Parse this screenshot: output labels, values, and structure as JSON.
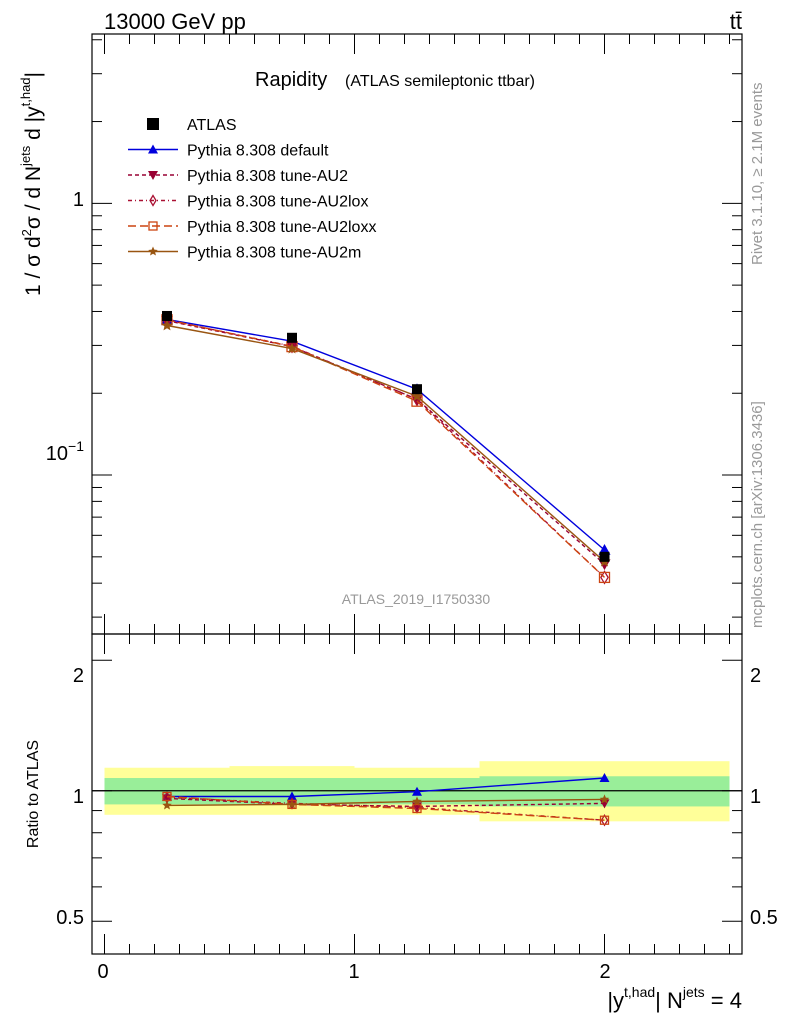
{
  "header": {
    "energy": "13000 GeV pp",
    "process": "tt̄"
  },
  "plot_title": {
    "main": "Rapidity",
    "sub": "(ATLAS semileptonic ttbar)"
  },
  "watermark": "ATLAS_2019_I1750330",
  "side_labels": {
    "rivet": "Rivet 3.1.10, ≥ 2.1M events",
    "mcplots": "mcplots.cern.ch [arXiv:1306.3436]"
  },
  "legend": [
    {
      "label": "ATLAS"
    },
    {
      "label": "Pythia 8.308 default"
    },
    {
      "label": "Pythia 8.308 tune-AU2"
    },
    {
      "label": "Pythia 8.308 tune-AU2lox"
    },
    {
      "label": "Pythia 8.308 tune-AU2loxx"
    },
    {
      "label": "Pythia 8.308 tune-AU2m"
    }
  ],
  "axes": {
    "y_main_label": "1 / σ d²σ / d N^jets d |y^t,had|",
    "y_ratio_label": "Ratio to ATLAS",
    "x_label": "|y^t,had| N^jets = 4",
    "main_y_ticks": [
      "1",
      "10⁻¹"
    ],
    "ratio_y_ticks": [
      "2",
      "1",
      "0.5"
    ],
    "x_ticks": [
      "0",
      "1",
      "2"
    ]
  },
  "chart_data": {
    "type": "line",
    "x": [
      0.25,
      0.75,
      1.25,
      2.0
    ],
    "x_edges": [
      0,
      0.5,
      1.0,
      1.5,
      2.5
    ],
    "xlim": [
      -0.05,
      2.55
    ],
    "main_ylim": [
      0.026,
      4.2
    ],
    "main_yscale": "log",
    "ratio_ylim": [
      0.42,
      2.3
    ],
    "ratio_yscale": "log",
    "grid": false,
    "legend_position": "top-left",
    "data": {
      "name": "ATLAS",
      "values": [
        0.385,
        0.32,
        0.207,
        0.05
      ],
      "band_inner": [
        [
          0.93,
          1.07
        ],
        [
          0.93,
          1.07
        ],
        [
          0.93,
          1.07
        ],
        [
          0.92,
          1.08
        ]
      ],
      "band_outer": [
        [
          0.88,
          1.13
        ],
        [
          0.88,
          1.14
        ],
        [
          0.88,
          1.13
        ],
        [
          0.85,
          1.17
        ]
      ]
    },
    "series": [
      {
        "name": "Pythia 8.308 default",
        "color": "#0000dd",
        "dash": "",
        "marker": "triangle-up",
        "values": [
          0.374,
          0.311,
          0.207,
          0.053
        ],
        "ratio": [
          0.97,
          0.97,
          0.995,
          1.07
        ]
      },
      {
        "name": "Pythia 8.308 tune-AU2",
        "color": "#990033",
        "dash": "4,3",
        "marker": "triangle-down",
        "values": [
          0.37,
          0.297,
          0.19,
          0.047
        ],
        "ratio": [
          0.96,
          0.93,
          0.92,
          0.935
        ]
      },
      {
        "name": "Pythia 8.308 tune-AU2lox",
        "color": "#aa1133",
        "dash": "4,3,1,3",
        "marker": "diamond-open",
        "values": [
          0.372,
          0.298,
          0.19,
          0.042
        ],
        "ratio": [
          0.965,
          0.935,
          0.915,
          0.855
        ]
      },
      {
        "name": "Pythia 8.308 tune-AU2loxx",
        "color": "#cc4411",
        "dash": "8,4",
        "marker": "square-open",
        "values": [
          0.373,
          0.297,
          0.187,
          0.042
        ],
        "ratio": [
          0.97,
          0.93,
          0.91,
          0.855
        ]
      },
      {
        "name": "Pythia 8.308 tune-AU2m",
        "color": "#995511",
        "dash": "",
        "marker": "star",
        "values": [
          0.355,
          0.292,
          0.195,
          0.048
        ],
        "ratio": [
          0.925,
          0.93,
          0.945,
          0.955
        ]
      }
    ]
  }
}
